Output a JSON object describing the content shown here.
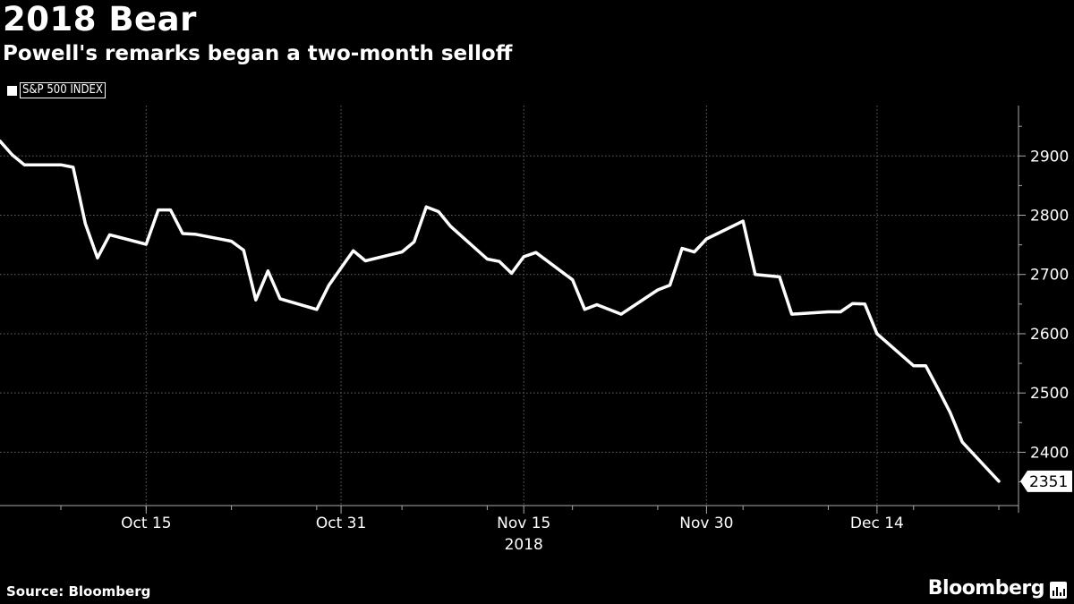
{
  "header": {
    "title": "2018 Bear",
    "subtitle": "Powell's remarks began a two-month selloff"
  },
  "footer": {
    "source": "Source: Bloomberg",
    "brand": "Bloomberg",
    "brand_icon": "bloomberg-terminal-icon"
  },
  "colors": {
    "background": "#000000",
    "line": "#ffffff",
    "grid": "#555555"
  },
  "chart_data": {
    "type": "line",
    "series": [
      {
        "name": "S&P 500 INDEX",
        "x": [
          "2018-10-03",
          "2018-10-04",
          "2018-10-05",
          "2018-10-08",
          "2018-10-09",
          "2018-10-10",
          "2018-10-11",
          "2018-10-12",
          "2018-10-15",
          "2018-10-16",
          "2018-10-17",
          "2018-10-18",
          "2018-10-19",
          "2018-10-22",
          "2018-10-23",
          "2018-10-24",
          "2018-10-25",
          "2018-10-26",
          "2018-10-29",
          "2018-10-30",
          "2018-10-31",
          "2018-11-01",
          "2018-11-02",
          "2018-11-05",
          "2018-11-06",
          "2018-11-07",
          "2018-11-08",
          "2018-11-09",
          "2018-11-12",
          "2018-11-13",
          "2018-11-14",
          "2018-11-15",
          "2018-11-16",
          "2018-11-19",
          "2018-11-20",
          "2018-11-21",
          "2018-11-23",
          "2018-11-26",
          "2018-11-27",
          "2018-11-28",
          "2018-11-29",
          "2018-11-30",
          "2018-12-03",
          "2018-12-04",
          "2018-12-06",
          "2018-12-07",
          "2018-12-10",
          "2018-12-11",
          "2018-12-12",
          "2018-12-13",
          "2018-12-14",
          "2018-12-17",
          "2018-12-18",
          "2018-12-19",
          "2018-12-20",
          "2018-12-21",
          "2018-12-24"
        ],
        "values": [
          2925,
          2902,
          2885,
          2885,
          2881,
          2786,
          2728,
          2767,
          2751,
          2809,
          2809,
          2769,
          2768,
          2756,
          2741,
          2657,
          2706,
          2659,
          2641,
          2682,
          2711,
          2740,
          2723,
          2738,
          2755,
          2814,
          2806,
          2781,
          2726,
          2722,
          2702,
          2730,
          2737,
          2691,
          2641,
          2649,
          2633,
          2674,
          2682,
          2744,
          2738,
          2760,
          2790,
          2700,
          2696,
          2633,
          2637,
          2637,
          2651,
          2650,
          2600,
          2546,
          2546,
          2507,
          2467,
          2417,
          2351
        ]
      }
    ],
    "x_ticks": [
      "Oct 15",
      "Oct 31",
      "Nov 15",
      "Nov 30",
      "Dec 14"
    ],
    "x_year_label": "2018",
    "y_ticks": [
      2400,
      2500,
      2600,
      2700,
      2800,
      2900
    ],
    "ylim": [
      2310,
      2985
    ],
    "y_axis_position": "right",
    "last_value_label": "2351",
    "grid": true,
    "legend": "top-left"
  }
}
